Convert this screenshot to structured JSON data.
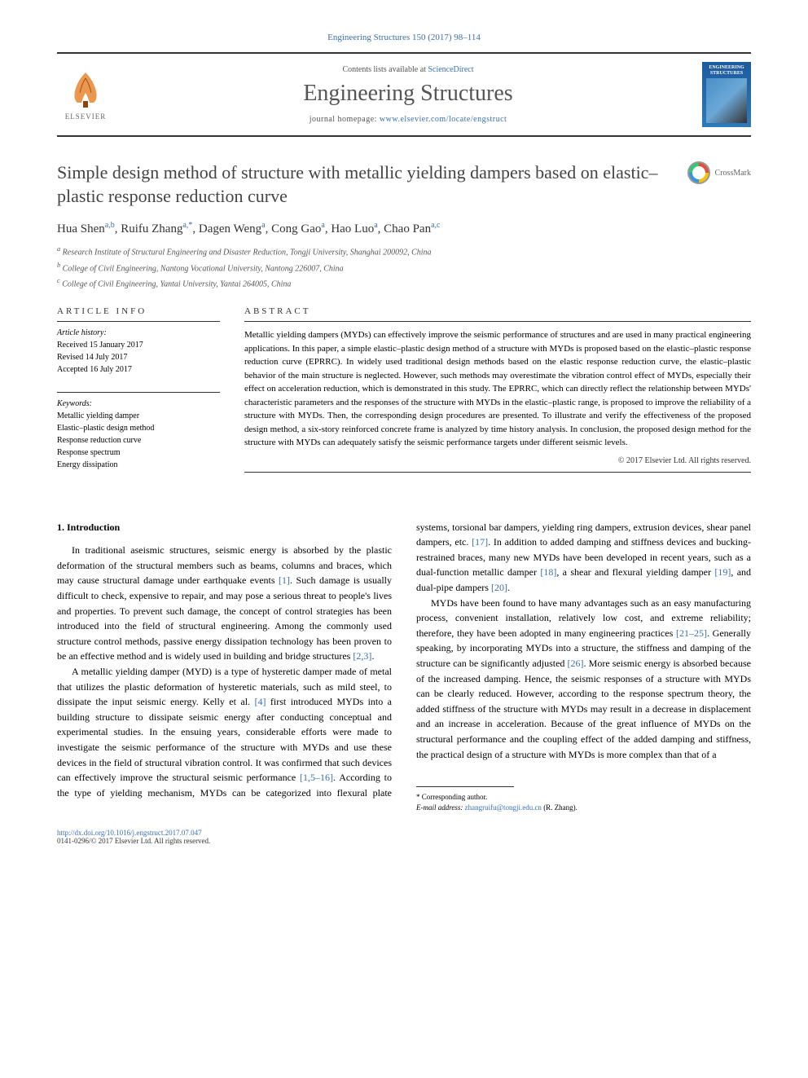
{
  "citation": "Engineering Structures 150 (2017) 98–114",
  "header": {
    "contents_prefix": "Contents lists available at ",
    "contents_link": "ScienceDirect",
    "journal_name": "Engineering Structures",
    "homepage_prefix": "journal homepage: ",
    "homepage_url": "www.elsevier.com/locate/engstruct",
    "publisher_label": "ELSEVIER",
    "cover_title": "ENGINEERING STRUCTURES"
  },
  "title": "Simple design method of structure with metallic yielding dampers based on elastic–plastic response reduction curve",
  "crossmark_label": "CrossMark",
  "authors_html": "Hua Shen<sup>a,b</sup>, Ruifu Zhang<sup>a,*</sup>, Dagen Weng<sup>a</sup>, Cong Gao<sup>a</sup>, Hao Luo<sup>a</sup>, Chao Pan<sup>a,c</sup>",
  "affiliations": [
    "a Research Institute of Structural Engineering and Disaster Reduction, Tongji University, Shanghai 200092, China",
    "b College of Civil Engineering, Nantong Vocational University, Nantong 226007, China",
    "c College of Civil Engineering, Yantai University, Yantai 264005, China"
  ],
  "info": {
    "heading": "ARTICLE INFO",
    "history_label": "Article history:",
    "history": [
      "Received 15 January 2017",
      "Revised 14 July 2017",
      "Accepted 16 July 2017"
    ],
    "keywords_label": "Keywords:",
    "keywords": [
      "Metallic yielding damper",
      "Elastic–plastic design method",
      "Response reduction curve",
      "Response spectrum",
      "Energy dissipation"
    ]
  },
  "abstract": {
    "heading": "ABSTRACT",
    "text": "Metallic yielding dampers (MYDs) can effectively improve the seismic performance of structures and are used in many practical engineering applications. In this paper, a simple elastic–plastic design method of a structure with MYDs is proposed based on the elastic–plastic response reduction curve (EPRRC). In widely used traditional design methods based on the elastic response reduction curve, the elastic–plastic behavior of the main structure is neglected. However, such methods may overestimate the vibration control effect of MYDs, especially their effect on acceleration reduction, which is demonstrated in this study. The EPRRC, which can directly reflect the relationship between MYDs' characteristic parameters and the responses of the structure with MYDs in the elastic–plastic range, is proposed to improve the reliability of a structure with MYDs. Then, the corresponding design procedures are presented. To illustrate and verify the effectiveness of the proposed design method, a six-story reinforced concrete frame is analyzed by time history analysis. In conclusion, the proposed design method for the structure with MYDs can adequately satisfy the seismic performance targets under different seismic levels.",
    "copyright": "© 2017 Elsevier Ltd. All rights reserved."
  },
  "section1": {
    "heading": "1. Introduction",
    "p1_pre": "In traditional aseismic structures, seismic energy is absorbed by the plastic deformation of the structural members such as beams, columns and braces, which may cause structural damage under earthquake events ",
    "p1_ref1": "[1]",
    "p1_mid": ". Such damage is usually difficult to check, expensive to repair, and may pose a serious threat to people's lives and properties. To prevent such damage, the concept of control strategies has been introduced into the field of structural engineering. Among the commonly used structure control methods, passive energy dissipation technology has been proven to be an effective method and is widely used in building and bridge structures ",
    "p1_ref2": "[2,3]",
    "p1_post": ".",
    "p2_pre": "A metallic yielding damper (MYD) is a type of hysteretic damper made of metal that utilizes the plastic deformation of hysteretic materials, such as mild steel, to dissipate the input seismic energy. Kelly et al. ",
    "p2_ref1": "[4]",
    "p2_mid1": " first introduced MYDs into a building structure to dissipate seismic energy after conducting conceptual and experimental studies. In the ensuing years, considerable efforts were made to investigate the seismic performance of the structure with MYDs and use these devices in the field of structural vibration control. It was confirmed that such devices can effectively improve the structural seismic performance ",
    "p2_ref2": "[1,5–16]",
    "p2_mid2": ". According to the type of yielding mechanism, MYDs can be categorized into flexural plate systems, torsional bar dampers, yielding ring dampers, extrusion devices, shear panel dampers, etc. ",
    "p2_ref3": "[17]",
    "p2_mid3": ". In addition to added damping and stiffness devices and bucking-restrained braces, many new MYDs have been developed in recent years, such as a dual-function metallic damper ",
    "p2_ref4": "[18]",
    "p2_mid4": ", a shear and flexural yielding damper ",
    "p2_ref5": "[19]",
    "p2_mid5": ", and dual-pipe dampers ",
    "p2_ref6": "[20]",
    "p2_post": ".",
    "p3_pre": "MYDs have been found to have many advantages such as an easy manufacturing process, convenient installation, relatively low cost, and extreme reliability; therefore, they have been adopted in many engineering practices ",
    "p3_ref1": "[21–25]",
    "p3_mid1": ". Generally speaking, by incorporating MYDs into a structure, the stiffness and damping of the structure can be significantly adjusted ",
    "p3_ref2": "[26]",
    "p3_post": ". More seismic energy is absorbed because of the increased damping. Hence, the seismic responses of a structure with MYDs can be clearly reduced. However, according to the response spectrum theory, the added stiffness of the structure with MYDs may result in a decrease in displacement and an increase in acceleration. Because of the great influence of MYDs on the structural performance and the coupling effect of the added damping and stiffness, the practical design of a structure with MYDs is more complex than that of a"
  },
  "footnote": {
    "corr_label": "* Corresponding author.",
    "email_label": "E-mail address: ",
    "email": "zhangruifu@tongji.edu.cn",
    "email_who": " (R. Zhang)."
  },
  "bottom": {
    "doi": "http://dx.doi.org/10.1016/j.engstruct.2017.07.047",
    "issn_line": "0141-0296/© 2017 Elsevier Ltd. All rights reserved."
  },
  "colors": {
    "link": "#3a6fb0",
    "text": "#000000",
    "muted": "#555555",
    "border": "#333333"
  }
}
